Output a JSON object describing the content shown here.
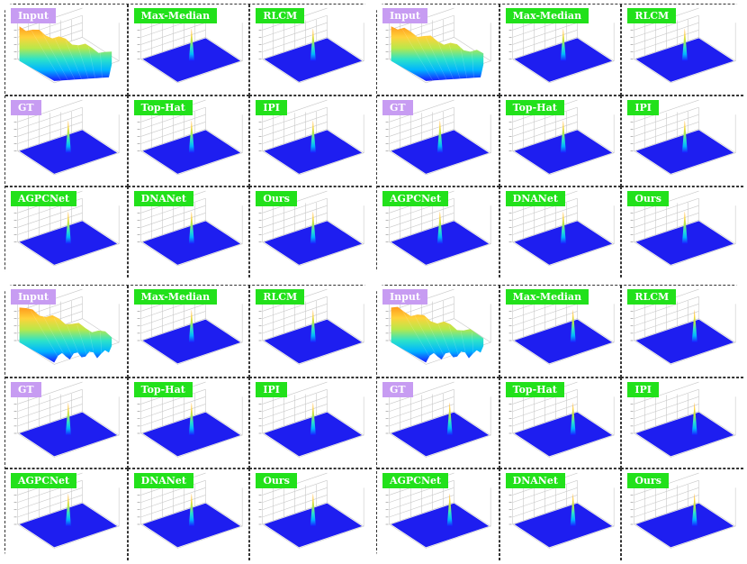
{
  "colors": {
    "purple_label": "#c79cf2",
    "green_label": "#22e11b",
    "plane_blue": "#1e1ef0",
    "surface_gradient": [
      "#1a1aff",
      "#00b4ff",
      "#2de3c8",
      "#b8e84a",
      "#ffd23a",
      "#ff9a1c"
    ]
  },
  "panels": [
    {
      "id": "input",
      "label": "Input",
      "label_style": "purple",
      "kind": "surface",
      "icon": "3d-surface-plot"
    },
    {
      "id": "max-median",
      "label": "Max-Median",
      "label_style": "green",
      "kind": "spike",
      "icon": "3d-spike-plot"
    },
    {
      "id": "rlcm",
      "label": "RLCM",
      "label_style": "green",
      "kind": "spike",
      "icon": "3d-spike-plot"
    },
    {
      "id": "gt",
      "label": "GT",
      "label_style": "purple",
      "kind": "spike",
      "icon": "3d-spike-plot"
    },
    {
      "id": "top-hat",
      "label": "Top-Hat",
      "label_style": "green",
      "kind": "spike",
      "icon": "3d-spike-plot"
    },
    {
      "id": "ipi",
      "label": "IPI",
      "label_style": "green",
      "kind": "spike",
      "icon": "3d-spike-plot"
    },
    {
      "id": "agpcnet",
      "label": "AGPCNet",
      "label_style": "green",
      "kind": "spike",
      "icon": "3d-spike-plot"
    },
    {
      "id": "dnanet",
      "label": "DNANet",
      "label_style": "green",
      "kind": "spike",
      "icon": "3d-spike-plot"
    },
    {
      "id": "ours",
      "label": "Ours",
      "label_style": "green",
      "kind": "spike",
      "icon": "3d-spike-plot"
    }
  ],
  "groups": [
    {
      "id": "top-left"
    },
    {
      "id": "top-right"
    },
    {
      "id": "bottom-left"
    },
    {
      "id": "bottom-right"
    }
  ]
}
